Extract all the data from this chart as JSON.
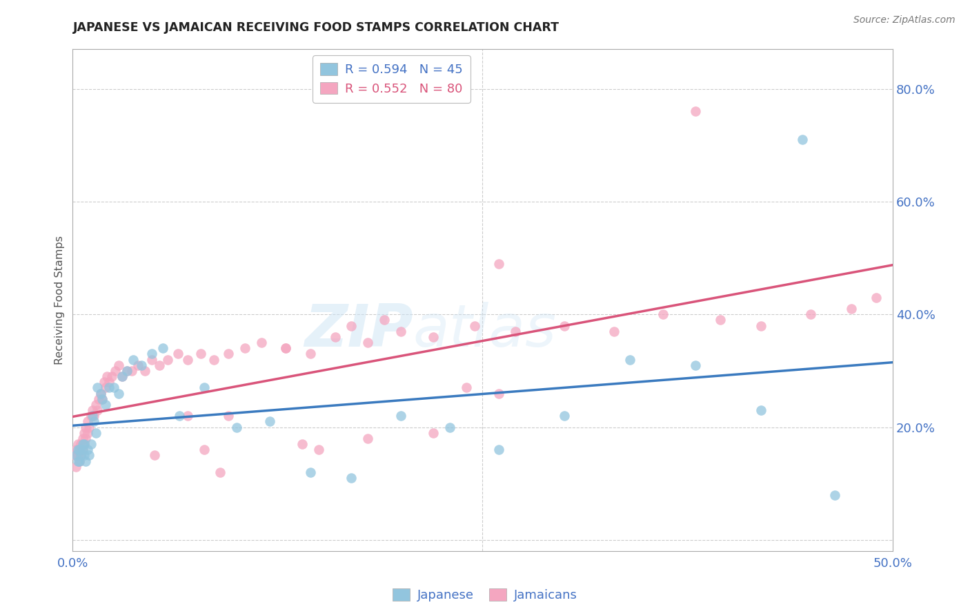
{
  "title": "JAPANESE VS JAMAICAN RECEIVING FOOD STAMPS CORRELATION CHART",
  "source": "Source: ZipAtlas.com",
  "ylabel": "Receiving Food Stamps",
  "xlim": [
    0.0,
    0.5
  ],
  "ylim": [
    -0.02,
    0.87
  ],
  "yticks": [
    0.0,
    0.2,
    0.4,
    0.6,
    0.8
  ],
  "ytick_labels": [
    "",
    "20.0%",
    "40.0%",
    "60.0%",
    "80.0%"
  ],
  "xticks": [
    0.0,
    0.1,
    0.2,
    0.3,
    0.4,
    0.5
  ],
  "xtick_labels": [
    "0.0%",
    "",
    "",
    "",
    "",
    "50.0%"
  ],
  "watermark_zip": "ZIP",
  "watermark_atlas": "atlas",
  "legend_blue_r": "R = 0.594",
  "legend_blue_n": "N = 45",
  "legend_pink_r": "R = 0.552",
  "legend_pink_n": "N = 80",
  "blue_color": "#92c5de",
  "pink_color": "#f4a6c0",
  "blue_line_color": "#3a7abf",
  "pink_line_color": "#d9547a",
  "grid_color": "#cccccc",
  "title_color": "#222222",
  "japanese_x": [
    0.002,
    0.003,
    0.003,
    0.004,
    0.004,
    0.005,
    0.006,
    0.006,
    0.007,
    0.007,
    0.008,
    0.009,
    0.01,
    0.011,
    0.012,
    0.013,
    0.014,
    0.015,
    0.017,
    0.018,
    0.02,
    0.022,
    0.025,
    0.028,
    0.03,
    0.033,
    0.037,
    0.042,
    0.048,
    0.055,
    0.065,
    0.08,
    0.1,
    0.12,
    0.145,
    0.17,
    0.2,
    0.23,
    0.26,
    0.3,
    0.34,
    0.38,
    0.42,
    0.445,
    0.465
  ],
  "japanese_y": [
    0.15,
    0.14,
    0.16,
    0.14,
    0.16,
    0.15,
    0.16,
    0.17,
    0.15,
    0.17,
    0.14,
    0.16,
    0.15,
    0.17,
    0.22,
    0.21,
    0.19,
    0.27,
    0.26,
    0.25,
    0.24,
    0.27,
    0.27,
    0.26,
    0.29,
    0.3,
    0.32,
    0.31,
    0.33,
    0.34,
    0.22,
    0.27,
    0.2,
    0.21,
    0.12,
    0.11,
    0.22,
    0.2,
    0.16,
    0.22,
    0.32,
    0.31,
    0.23,
    0.71,
    0.08
  ],
  "jamaican_x": [
    0.001,
    0.002,
    0.002,
    0.003,
    0.003,
    0.004,
    0.004,
    0.005,
    0.005,
    0.006,
    0.006,
    0.007,
    0.007,
    0.008,
    0.008,
    0.009,
    0.009,
    0.01,
    0.011,
    0.012,
    0.013,
    0.014,
    0.015,
    0.016,
    0.017,
    0.018,
    0.019,
    0.02,
    0.021,
    0.022,
    0.024,
    0.026,
    0.028,
    0.03,
    0.033,
    0.036,
    0.04,
    0.044,
    0.048,
    0.053,
    0.058,
    0.064,
    0.07,
    0.078,
    0.086,
    0.095,
    0.105,
    0.115,
    0.13,
    0.145,
    0.16,
    0.18,
    0.2,
    0.22,
    0.245,
    0.27,
    0.3,
    0.33,
    0.36,
    0.395,
    0.42,
    0.45,
    0.475,
    0.49,
    0.13,
    0.17,
    0.095,
    0.19,
    0.07,
    0.24,
    0.26,
    0.14,
    0.08,
    0.05,
    0.22,
    0.18,
    0.15,
    0.09,
    0.26,
    0.38
  ],
  "jamaican_y": [
    0.15,
    0.13,
    0.16,
    0.15,
    0.17,
    0.14,
    0.16,
    0.15,
    0.17,
    0.16,
    0.18,
    0.17,
    0.19,
    0.18,
    0.2,
    0.19,
    0.21,
    0.2,
    0.22,
    0.23,
    0.22,
    0.24,
    0.23,
    0.25,
    0.26,
    0.25,
    0.28,
    0.27,
    0.29,
    0.28,
    0.29,
    0.3,
    0.31,
    0.29,
    0.3,
    0.3,
    0.31,
    0.3,
    0.32,
    0.31,
    0.32,
    0.33,
    0.32,
    0.33,
    0.32,
    0.33,
    0.34,
    0.35,
    0.34,
    0.33,
    0.36,
    0.35,
    0.37,
    0.36,
    0.38,
    0.37,
    0.38,
    0.37,
    0.4,
    0.39,
    0.38,
    0.4,
    0.41,
    0.43,
    0.34,
    0.38,
    0.22,
    0.39,
    0.22,
    0.27,
    0.26,
    0.17,
    0.16,
    0.15,
    0.19,
    0.18,
    0.16,
    0.12,
    0.49,
    0.76
  ]
}
